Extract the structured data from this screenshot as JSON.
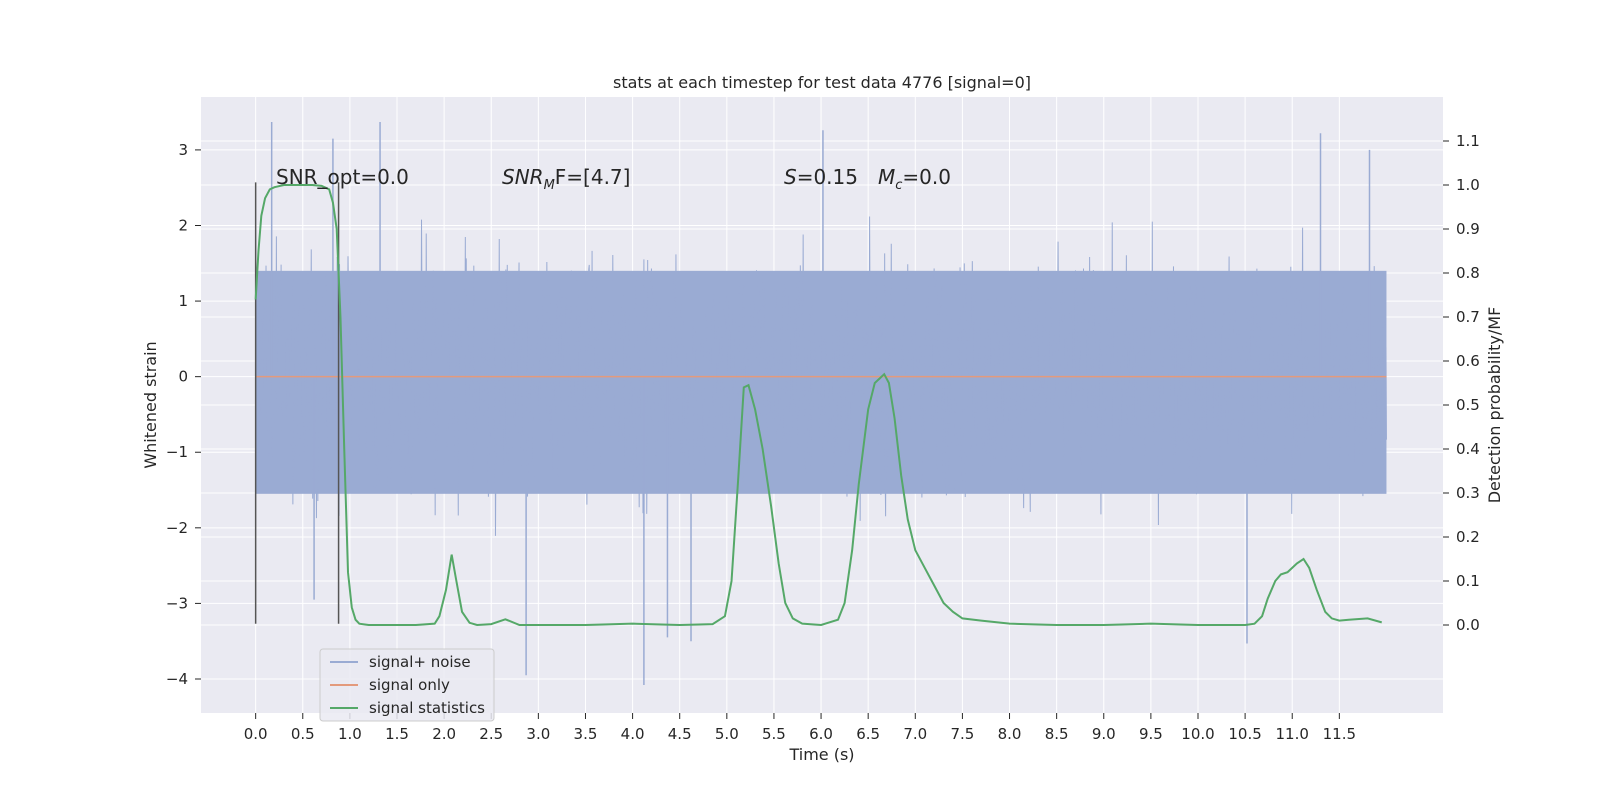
{
  "colors": {
    "background": "#eaeaf2",
    "grid": "#ffffff",
    "noise": "#9aabd3",
    "signal_only": "#e39a7c",
    "statistics": "#55a868",
    "marker": "#555555"
  },
  "chart_data": {
    "type": "line",
    "title": "stats at each timestep for test data 4776 [signal=0]",
    "xlabel": "Time (s)",
    "ylabel_left": "Whitened strain",
    "ylabel_right": "Detection probability/MF",
    "xlim": [
      -0.58,
      12.6
    ],
    "ylim_left": [
      -4.45,
      3.7
    ],
    "ylim_right": [
      -0.2,
      1.2
    ],
    "x_ticks": [
      0.0,
      0.5,
      1.0,
      1.5,
      2.0,
      2.5,
      3.0,
      3.5,
      4.0,
      4.5,
      5.0,
      5.5,
      6.0,
      6.5,
      7.0,
      7.5,
      8.0,
      8.5,
      9.0,
      9.5,
      10.0,
      10.5,
      11.0,
      11.5
    ],
    "y_ticks_left": [
      -4,
      -3,
      -2,
      -1,
      0,
      1,
      2,
      3
    ],
    "y_ticks_right": [
      0.0,
      0.1,
      0.2,
      0.3,
      0.4,
      0.5,
      0.6,
      0.7,
      0.8,
      0.9,
      1.0,
      1.1
    ],
    "grid": true,
    "legend_position": "lower-left",
    "legend": [
      "signal+ noise",
      "signal only",
      "signal statistics"
    ],
    "annotations": {
      "snr_opt": "SNR_opt=0.0",
      "snr_mf_main": "SNR",
      "snr_mf_sub": "M",
      "snr_mf_rest": "F=[4.7]",
      "s_main": "S",
      "s_rest": "=0.15",
      "mc_main": "M",
      "mc_sub": "c",
      "mc_rest": "=0.0"
    },
    "markers_x": [
      0.0,
      0.88
    ],
    "marker_range_left": [
      -3.27,
      2.57
    ],
    "noise": {
      "name": "signal+ noise",
      "x_range": [
        0.0,
        12.0
      ],
      "envelope_left": [
        -1.55,
        1.4
      ],
      "typical_extremes": [
        -2.8,
        2.8
      ],
      "spikes": [
        {
          "x": 0.17,
          "y": 3.37
        },
        {
          "x": 0.82,
          "y": 3.15
        },
        {
          "x": 1.32,
          "y": 3.37
        },
        {
          "x": 2.87,
          "y": -3.95
        },
        {
          "x": 4.12,
          "y": -4.08
        },
        {
          "x": 4.37,
          "y": -3.45
        },
        {
          "x": 6.02,
          "y": 3.26
        },
        {
          "x": 10.52,
          "y": -3.53
        },
        {
          "x": 11.82,
          "y": 3.0
        },
        {
          "x": 11.3,
          "y": 3.22
        },
        {
          "x": 0.62,
          "y": -2.95
        },
        {
          "x": 4.62,
          "y": -3.5
        }
      ]
    },
    "signal_only": {
      "name": "signal only",
      "x": [
        0.0,
        12.0
      ],
      "y": [
        0.0,
        0.0
      ]
    },
    "statistics": {
      "name": "signal statistics",
      "x": [
        0.0,
        0.03,
        0.06,
        0.1,
        0.15,
        0.2,
        0.3,
        0.45,
        0.6,
        0.7,
        0.78,
        0.82,
        0.86,
        0.9,
        0.94,
        0.98,
        1.02,
        1.06,
        1.1,
        1.2,
        1.4,
        1.7,
        1.9,
        1.95,
        2.02,
        2.08,
        2.13,
        2.19,
        2.27,
        2.35,
        2.5,
        2.65,
        2.8,
        3.0,
        3.5,
        4.0,
        4.5,
        4.85,
        4.98,
        5.05,
        5.12,
        5.18,
        5.23,
        5.3,
        5.38,
        5.47,
        5.55,
        5.62,
        5.7,
        5.8,
        6.0,
        6.18,
        6.25,
        6.33,
        6.4,
        6.5,
        6.57,
        6.62,
        6.67,
        6.72,
        6.78,
        6.85,
        6.92,
        7.0,
        7.1,
        7.2,
        7.3,
        7.4,
        7.5,
        7.7,
        8.0,
        8.5,
        9.0,
        9.5,
        10.0,
        10.5,
        10.6,
        10.68,
        10.74,
        10.82,
        10.88,
        10.95,
        11.05,
        11.12,
        11.18,
        11.26,
        11.35,
        11.42,
        11.5,
        11.6,
        11.8,
        11.95
      ],
      "y": [
        0.74,
        0.85,
        0.93,
        0.97,
        0.99,
        0.995,
        1.0,
        1.0,
        1.0,
        0.998,
        0.99,
        0.96,
        0.9,
        0.7,
        0.4,
        0.12,
        0.04,
        0.012,
        0.003,
        0.0,
        0.0,
        0.0,
        0.003,
        0.02,
        0.08,
        0.16,
        0.1,
        0.03,
        0.005,
        0.0,
        0.002,
        0.013,
        0.0,
        0.0,
        0.0,
        0.003,
        0.0,
        0.002,
        0.02,
        0.1,
        0.33,
        0.54,
        0.545,
        0.49,
        0.4,
        0.27,
        0.14,
        0.05,
        0.015,
        0.003,
        0.0,
        0.012,
        0.05,
        0.17,
        0.32,
        0.49,
        0.55,
        0.56,
        0.57,
        0.55,
        0.47,
        0.34,
        0.24,
        0.17,
        0.13,
        0.09,
        0.05,
        0.03,
        0.015,
        0.01,
        0.003,
        0.0,
        0.0,
        0.003,
        0.0,
        0.0,
        0.003,
        0.02,
        0.06,
        0.1,
        0.115,
        0.12,
        0.14,
        0.15,
        0.13,
        0.08,
        0.03,
        0.015,
        0.01,
        0.012,
        0.015,
        0.006
      ]
    }
  }
}
